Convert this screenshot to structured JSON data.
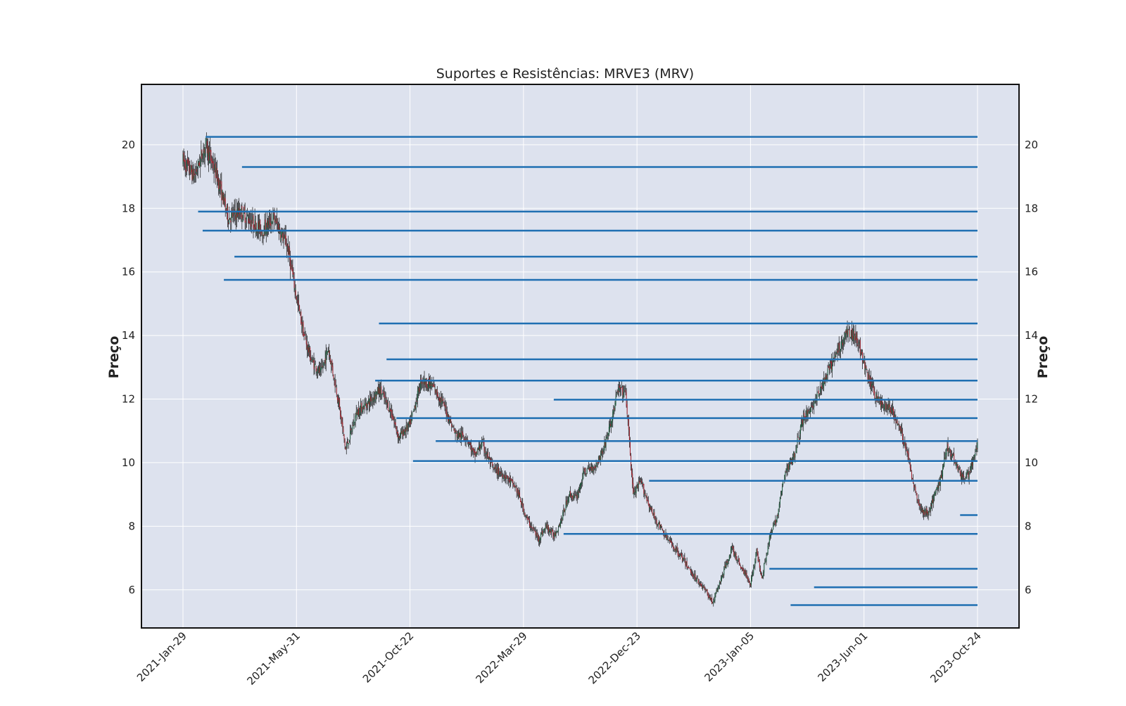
{
  "chart_data": {
    "type": "candlestick",
    "title": "Suportes e Resistências: MRVE3 (MRV)",
    "xlabel": "",
    "ylabel": "Preço",
    "ylabel_right": "Preço",
    "ylim": [
      4.8,
      21.9
    ],
    "yticks": [
      6,
      8,
      10,
      12,
      14,
      16,
      18,
      20
    ],
    "ytick_labels": [
      "6",
      "8",
      "10",
      "12",
      "14",
      "16",
      "18",
      "20"
    ],
    "xticks": [
      "2021-Jan-29",
      "2021-May-31",
      "2021-Oct-22",
      "2022-Mar-29",
      "2022-Dec-23",
      "2023-Jan-05",
      "2023-Jun-01",
      "2023-Oct-24"
    ],
    "grid": true,
    "colors": {
      "background": "#dde2ee",
      "grid": "#ffffff",
      "line": "#1f6fb2",
      "candle_up": "#1a5a3a",
      "candle_down": "#a0202a",
      "wick": "#111111"
    },
    "price_path": [
      [
        0,
        19.5
      ],
      [
        15,
        19.0
      ],
      [
        30,
        20.0
      ],
      [
        45,
        19.0
      ],
      [
        60,
        17.7
      ],
      [
        75,
        17.9
      ],
      [
        90,
        17.6
      ],
      [
        105,
        17.3
      ],
      [
        120,
        17.7
      ],
      [
        138,
        16.8
      ],
      [
        150,
        15.2
      ],
      [
        160,
        14.0
      ],
      [
        170,
        13.2
      ],
      [
        182,
        12.8
      ],
      [
        192,
        13.6
      ],
      [
        205,
        12.0
      ],
      [
        215,
        10.4
      ],
      [
        230,
        11.6
      ],
      [
        245,
        11.9
      ],
      [
        260,
        12.3
      ],
      [
        275,
        11.6
      ],
      [
        285,
        10.8
      ],
      [
        300,
        11.2
      ],
      [
        315,
        12.6
      ],
      [
        330,
        12.4
      ],
      [
        345,
        11.8
      ],
      [
        360,
        10.9
      ],
      [
        375,
        10.8
      ],
      [
        385,
        10.2
      ],
      [
        395,
        10.6
      ],
      [
        410,
        9.8
      ],
      [
        425,
        9.6
      ],
      [
        440,
        9.2
      ],
      [
        455,
        8.2
      ],
      [
        470,
        7.6
      ],
      [
        480,
        8.0
      ],
      [
        490,
        7.7
      ],
      [
        500,
        8.2
      ],
      [
        510,
        9.0
      ],
      [
        520,
        8.9
      ],
      [
        530,
        9.7
      ],
      [
        545,
        9.9
      ],
      [
        555,
        10.4
      ],
      [
        565,
        11.2
      ],
      [
        575,
        12.3
      ],
      [
        585,
        12.2
      ],
      [
        595,
        9.0
      ],
      [
        605,
        9.4
      ],
      [
        620,
        8.4
      ],
      [
        640,
        7.6
      ],
      [
        660,
        7.0
      ],
      [
        670,
        6.6
      ],
      [
        680,
        6.3
      ],
      [
        690,
        6.0
      ],
      [
        700,
        5.6
      ],
      [
        712,
        6.4
      ],
      [
        725,
        7.3
      ],
      [
        738,
        6.7
      ],
      [
        750,
        6.2
      ],
      [
        758,
        7.2
      ],
      [
        765,
        6.4
      ],
      [
        775,
        7.6
      ],
      [
        785,
        8.3
      ],
      [
        795,
        9.6
      ],
      [
        808,
        10.3
      ],
      [
        820,
        11.4
      ],
      [
        835,
        11.9
      ],
      [
        850,
        12.7
      ],
      [
        865,
        13.5
      ],
      [
        877,
        14.1
      ],
      [
        890,
        14.0
      ],
      [
        902,
        12.9
      ],
      [
        915,
        12.1
      ],
      [
        925,
        11.8
      ],
      [
        935,
        11.7
      ],
      [
        945,
        11.2
      ],
      [
        955,
        10.5
      ],
      [
        965,
        9.4
      ],
      [
        975,
        8.5
      ],
      [
        985,
        8.4
      ],
      [
        1000,
        9.4
      ],
      [
        1010,
        10.5
      ],
      [
        1020,
        10.1
      ],
      [
        1030,
        9.5
      ],
      [
        1040,
        9.7
      ],
      [
        1050,
        10.6
      ]
    ],
    "sr_levels": [
      {
        "x0": 30,
        "y": 20.25
      },
      {
        "x0": 78,
        "y": 19.3
      },
      {
        "x0": 20,
        "y": 17.9
      },
      {
        "x0": 26,
        "y": 17.3
      },
      {
        "x0": 68,
        "y": 16.48
      },
      {
        "x0": 54,
        "y": 15.75
      },
      {
        "x0": 259,
        "y": 14.38
      },
      {
        "x0": 269,
        "y": 13.25
      },
      {
        "x0": 254,
        "y": 12.58
      },
      {
        "x0": 490,
        "y": 11.98
      },
      {
        "x0": 282,
        "y": 11.4
      },
      {
        "x0": 334,
        "y": 10.68
      },
      {
        "x0": 304,
        "y": 10.05
      },
      {
        "x0": 616,
        "y": 9.43
      },
      {
        "x0": 1027,
        "y": 8.35
      },
      {
        "x0": 503,
        "y": 7.76
      },
      {
        "x0": 775,
        "y": 6.66
      },
      {
        "x0": 834,
        "y": 6.08
      },
      {
        "x0": 803,
        "y": 5.52
      }
    ],
    "n_bars": 1051
  }
}
